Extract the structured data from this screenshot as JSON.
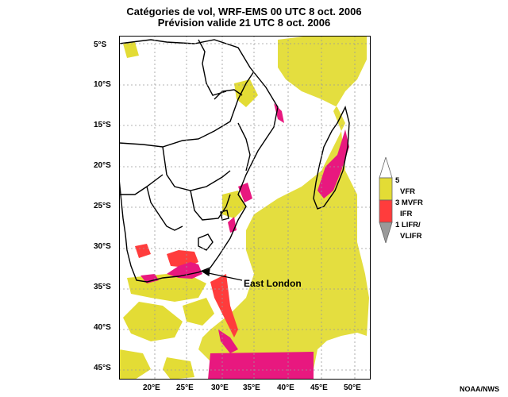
{
  "title": {
    "line1": "Catégories de vol, WRF-EMS 00 UTC 8 oct. 2006",
    "line2": "Prévision valide 21 UTC 8 oct. 2006"
  },
  "map": {
    "lat_ticks": [
      "5°S",
      "10°S",
      "15°S",
      "20°S",
      "25°S",
      "30°S",
      "35°S",
      "40°S",
      "45°S"
    ],
    "lon_ticks": [
      "20°E",
      "25°E",
      "30°E",
      "35°E",
      "40°E",
      "45°E",
      "50°E"
    ],
    "annotation": "East London",
    "grid": true,
    "colors": {
      "vfr": "#e3dc35",
      "mvfr": "#ff3c3c",
      "ifr": "#e8187f",
      "lifr": "#9a9a9a",
      "land_outline": "#000000"
    }
  },
  "legend": {
    "labels": [
      "5",
      "VFR",
      "3 MVFR",
      "IFR",
      "1 LIFR/",
      "VLIFR"
    ]
  },
  "credit": "NOAA/NWS"
}
